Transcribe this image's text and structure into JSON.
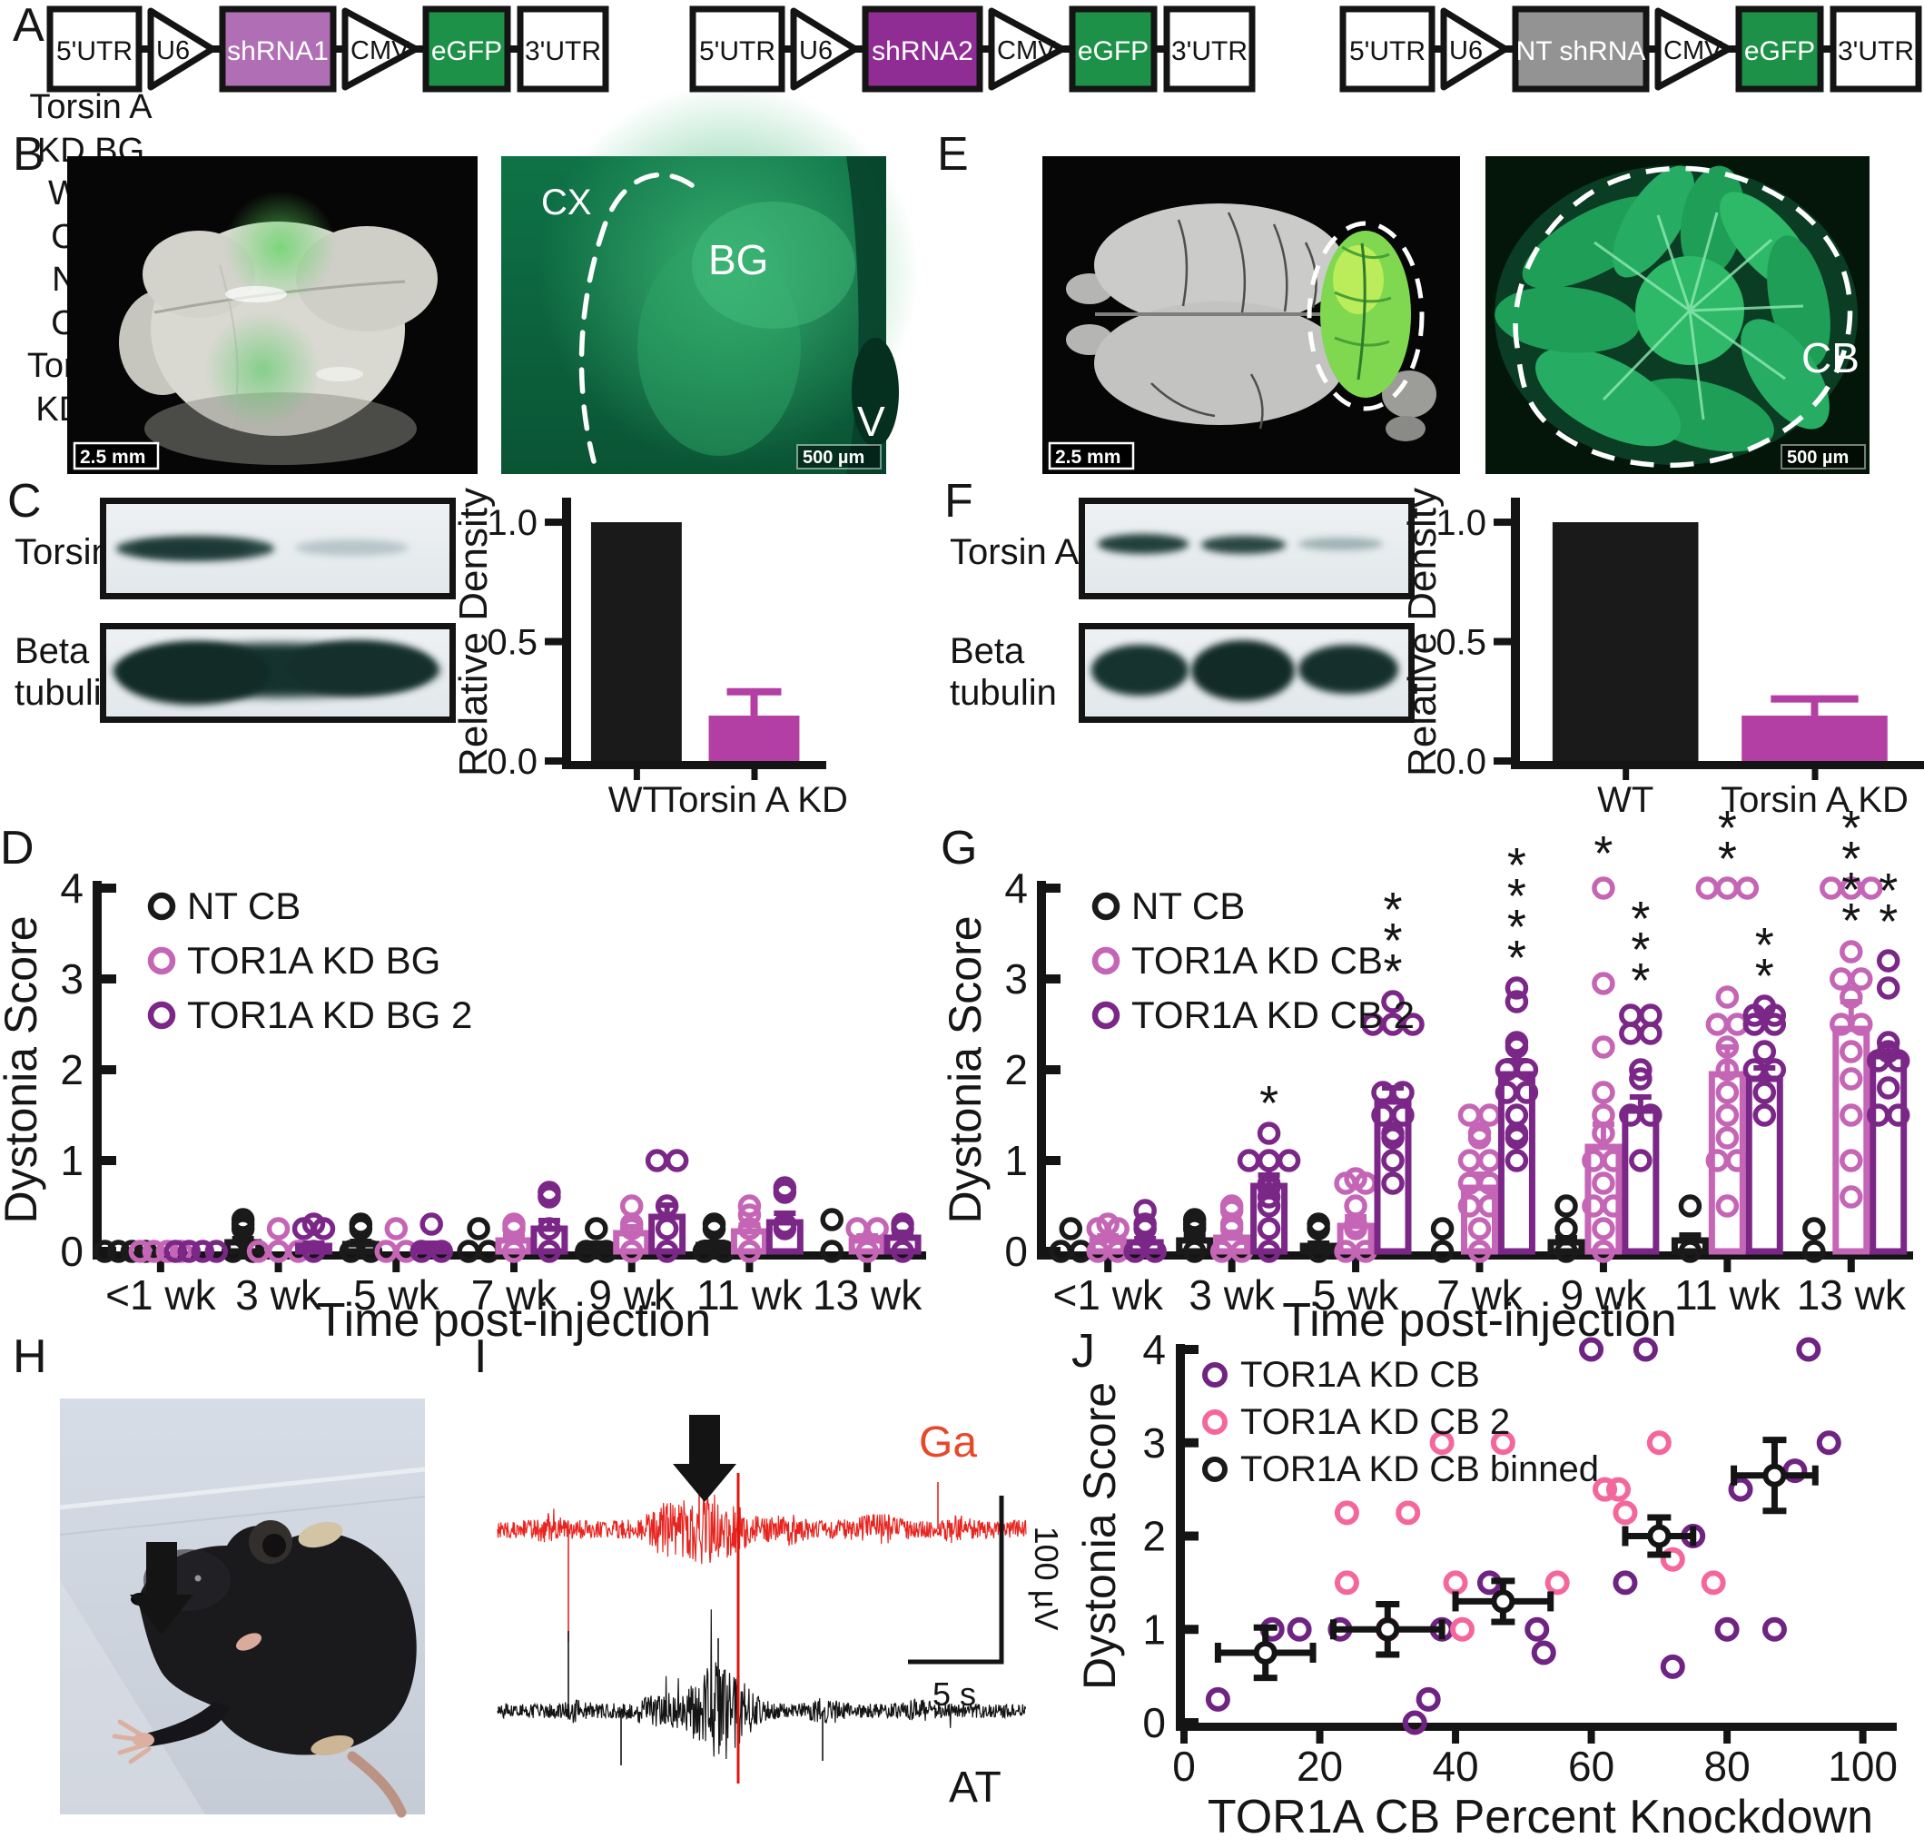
{
  "figure": {
    "panel_letters": {
      "a": "A",
      "b": "B",
      "c": "C",
      "d": "D",
      "e": "E",
      "f": "F",
      "g": "G",
      "h": "H",
      "i": "I",
      "j": "J"
    }
  },
  "panels": {
    "A": {
      "constructs": [
        {
          "name": "shRNA1 construct",
          "segments": [
            {
              "kind": "box",
              "label": "5'UTR",
              "fill": "#ffffff",
              "text_color": "#141414",
              "w": 104
            },
            {
              "kind": "promoter",
              "label": "U6",
              "w": 70
            },
            {
              "kind": "box",
              "label": "shRNA1",
              "fill": "#b06fb5",
              "text_color": "#ffffff",
              "w": 128
            },
            {
              "kind": "promoter",
              "label": "CMV",
              "w": 80
            },
            {
              "kind": "box",
              "label": "eGFP",
              "fill": "#1d9147",
              "text_color": "#ffffff",
              "w": 96
            },
            {
              "kind": "box",
              "label": "3'UTR",
              "fill": "#ffffff",
              "text_color": "#141414",
              "w": 100
            }
          ]
        },
        {
          "name": "shRNA2 construct",
          "segments": [
            {
              "kind": "box",
              "label": "5'UTR",
              "fill": "#ffffff",
              "text_color": "#141414",
              "w": 104
            },
            {
              "kind": "promoter",
              "label": "U6",
              "w": 70
            },
            {
              "kind": "box",
              "label": "shRNA2",
              "fill": "#8f2d95",
              "text_color": "#ffffff",
              "w": 132
            },
            {
              "kind": "promoter",
              "label": "CMV",
              "w": 80
            },
            {
              "kind": "box",
              "label": "eGFP",
              "fill": "#1d9147",
              "text_color": "#ffffff",
              "w": 96
            },
            {
              "kind": "box",
              "label": "3'UTR",
              "fill": "#ffffff",
              "text_color": "#141414",
              "w": 100
            }
          ]
        },
        {
          "name": "NT shRNA construct",
          "segments": [
            {
              "kind": "box",
              "label": "5'UTR",
              "fill": "#ffffff",
              "text_color": "#141414",
              "w": 104
            },
            {
              "kind": "promoter",
              "label": "U6",
              "w": 70
            },
            {
              "kind": "box",
              "label": "NT shRNA",
              "fill": "#939393",
              "text_color": "#ffffff",
              "w": 150
            },
            {
              "kind": "promoter",
              "label": "CMV",
              "w": 80
            },
            {
              "kind": "box",
              "label": "eGFP",
              "fill": "#1d9147",
              "text_color": "#ffffff",
              "w": 96
            },
            {
              "kind": "box",
              "label": "3'UTR",
              "fill": "#ffffff",
              "text_color": "#141414",
              "w": 100
            }
          ]
        }
      ]
    },
    "B": {
      "scale_left": "2.5 mm",
      "scale_right": "500 µm",
      "labels": {
        "cx": "CX",
        "bg": "BG",
        "v": "V"
      }
    },
    "C": {
      "torsin_label": "TorsinA",
      "beta_label_1": "Beta",
      "beta_label_2": "tubulin",
      "lanes": [
        [
          "WT",
          "BG"
        ],
        [
          "Torsin A",
          "KD BG"
        ]
      ]
    },
    "E": {
      "scale_left": "2.5 mm",
      "scale_right": "500 µm",
      "labels": {
        "cb": "CB"
      }
    },
    "F": {
      "torsin_label": "Torsin A",
      "beta_label_1": "Beta",
      "beta_label_2": "tubulin",
      "lanes": [
        [
          "WT",
          "CB"
        ],
        [
          "NT",
          "CB"
        ],
        [
          "Torsin A",
          "KD CB"
        ]
      ]
    },
    "I": {
      "top_label": "Ga",
      "bottom_label": "AT",
      "top_color": "#e8472a",
      "trace_bottom_color": "#141414",
      "vscale": "100 µV",
      "hscale": "5 s"
    }
  },
  "chart_data": [
    {
      "id": "C",
      "type": "bar",
      "ylabel": "Relative Density",
      "categories": [
        "WT",
        "Torsin A KD"
      ],
      "values": [
        1.0,
        0.19
      ],
      "errors": [
        0,
        0.1
      ],
      "colors": [
        "#1a1a1a",
        "#b43fa4"
      ],
      "ylim": [
        0,
        1.08
      ],
      "ytick_vals": [
        0,
        0.5,
        1
      ],
      "ytick_labels": [
        "0.0",
        "0.5",
        "1.0"
      ]
    },
    {
      "id": "F",
      "type": "bar",
      "ylabel": "Relative Density",
      "categories": [
        "WT",
        "Torsin A KD"
      ],
      "values": [
        1.0,
        0.19
      ],
      "errors": [
        0,
        0.07
      ],
      "colors": [
        "#1a1a1a",
        "#b43fa4"
      ],
      "ylim": [
        0,
        1.08
      ],
      "ytick_vals": [
        0,
        0.5,
        1
      ],
      "ytick_labels": [
        "0.0",
        "0.5",
        "1.0"
      ]
    },
    {
      "id": "D",
      "type": "grouped-scatter-bar",
      "ylabel": "Dystonia Score",
      "xlabel": "Time post-injection",
      "ylim": [
        0,
        4
      ],
      "ytick_vals": [
        0,
        1,
        2,
        3,
        4
      ],
      "categories": [
        "<1 wk",
        "3 wk",
        "5 wk",
        "7 wk",
        "9 wk",
        "11 wk",
        "13 wk"
      ],
      "series": [
        {
          "name": "NT CB",
          "color": "#1a1a1a",
          "means": [
            0.01,
            0.1,
            0.08,
            0.05,
            0.06,
            0.07,
            0.05
          ],
          "sems": [
            0.01,
            0.04,
            0.03,
            0.02,
            0.03,
            0.03,
            0.02
          ],
          "points": [
            [
              0,
              0,
              0,
              0
            ],
            [
              0,
              0,
              0.25,
              0.3,
              0.35
            ],
            [
              0,
              0,
              0.25,
              0.3
            ],
            [
              0,
              0,
              0.25
            ],
            [
              0,
              0,
              0.25
            ],
            [
              0,
              0,
              0.25,
              0.3
            ],
            [
              0,
              0.35
            ]
          ]
        },
        {
          "name": "TOR1A KD BG",
          "color": "#c565b5",
          "means": [
            0.01,
            0.03,
            0.05,
            0.12,
            0.2,
            0.22,
            0.12
          ],
          "sems": [
            0.01,
            0.02,
            0.03,
            0.05,
            0.07,
            0.07,
            0.05
          ],
          "points": [
            [
              0,
              0,
              0,
              0
            ],
            [
              0,
              0,
              0,
              0.25
            ],
            [
              0,
              0,
              0.25
            ],
            [
              0,
              0.25,
              0.3
            ],
            [
              0,
              0.25,
              0.3,
              0.5
            ],
            [
              0,
              0.25,
              0.4,
              0.5
            ],
            [
              0,
              0.25,
              0.25
            ]
          ]
        },
        {
          "name": "TOR1A KD BG 2",
          "color": "#7b2787",
          "means": [
            0.01,
            0.06,
            0.06,
            0.25,
            0.38,
            0.32,
            0.15
          ],
          "sems": [
            0.01,
            0.03,
            0.03,
            0.09,
            0.13,
            0.1,
            0.06
          ],
          "points": [
            [
              0,
              0,
              0,
              0
            ],
            [
              0,
              0.25,
              0.25,
              0.3
            ],
            [
              0,
              0,
              0.3
            ],
            [
              0,
              0.25,
              0.6,
              0.65
            ],
            [
              0,
              0.25,
              0.5,
              1.0,
              1.0
            ],
            [
              0.25,
              0.3,
              0.65,
              0.7
            ],
            [
              0,
              0.25,
              0.3
            ]
          ]
        }
      ],
      "sig": []
    },
    {
      "id": "G",
      "type": "grouped-scatter-bar",
      "ylabel": "Dystonia Score",
      "xlabel": "Time post-injection",
      "ylim": [
        0,
        4
      ],
      "ytick_vals": [
        0,
        1,
        2,
        3,
        4
      ],
      "categories": [
        "<1 wk",
        "3 wk",
        "5 wk",
        "7 wk",
        "9 wk",
        "11 wk",
        "13 wk"
      ],
      "series": [
        {
          "name": "NT CB",
          "color": "#1a1a1a",
          "means": [
            0.04,
            0.12,
            0.06,
            0.03,
            0.1,
            0.12,
            0.04
          ],
          "sems": [
            0.02,
            0.05,
            0.03,
            0.02,
            0.05,
            0.06,
            0.02
          ],
          "points": [
            [
              0,
              0,
              0.25
            ],
            [
              0,
              0.25,
              0.3,
              0.35
            ],
            [
              0,
              0.25,
              0.3
            ],
            [
              0,
              0.25
            ],
            [
              0,
              0.25,
              0.5
            ],
            [
              0,
              0.5
            ],
            [
              0,
              0.25
            ]
          ]
        },
        {
          "name": "TOR1A KD CB",
          "color": "#c565b5",
          "means": [
            0.12,
            0.15,
            0.28,
            0.7,
            1.15,
            1.95,
            2.45
          ],
          "sems": [
            0.05,
            0.06,
            0.1,
            0.15,
            0.25,
            0.3,
            0.3
          ],
          "points": [
            [
              0,
              0,
              0.25,
              0.25,
              0.3
            ],
            [
              0,
              0,
              0.25,
              0.3,
              0.45,
              0.5
            ],
            [
              0,
              0,
              0.25,
              0.3,
              0.5,
              0.75,
              0.75,
              0.8
            ],
            [
              0,
              0.25,
              0.5,
              0.5,
              0.75,
              0.75,
              1.0,
              1.0,
              1.25,
              1.3,
              1.5,
              1.5
            ],
            [
              0,
              0.25,
              0.5,
              0.5,
              0.75,
              1.0,
              1.0,
              1.3,
              1.5,
              1.75,
              2.25,
              2.95,
              4.0
            ],
            [
              0.5,
              1.0,
              1.0,
              1.25,
              1.5,
              1.75,
              2.0,
              2.25,
              2.5,
              2.5,
              2.8,
              4.0,
              4.0,
              4.0
            ],
            [
              0.6,
              1.0,
              1.5,
              1.9,
              2.2,
              2.5,
              2.5,
              2.8,
              3.0,
              3.0,
              3.3,
              4.0,
              4.0,
              4.0
            ]
          ]
        },
        {
          "name": "TOR1A KD CB 2",
          "color": "#7b2787",
          "means": [
            0.1,
            0.72,
            1.65,
            1.95,
            1.55,
            1.9,
            2.15
          ],
          "sems": [
            0.04,
            0.12,
            0.15,
            0.15,
            0.15,
            0.12,
            0.12
          ],
          "points": [
            [
              0,
              0,
              0.25,
              0.3,
              0.45
            ],
            [
              0,
              0.25,
              0.5,
              0.6,
              0.7,
              0.75,
              1.0,
              1.0,
              1.0,
              1.3
            ],
            [
              0.75,
              1.0,
              1.25,
              1.3,
              1.5,
              1.5,
              1.75,
              1.75,
              2.5,
              2.5,
              2.5,
              2.75
            ],
            [
              1.0,
              1.25,
              1.3,
              1.5,
              1.75,
              1.75,
              2.0,
              2.0,
              2.25,
              2.3,
              2.75,
              2.9
            ],
            [
              1.0,
              1.5,
              1.5,
              1.9,
              2.0,
              2.4,
              2.4,
              2.6,
              2.6
            ],
            [
              1.5,
              1.75,
              2.0,
              2.0,
              2.2,
              2.5,
              2.5,
              2.6,
              2.6,
              2.7
            ],
            [
              1.5,
              1.5,
              1.8,
              2.1,
              2.1,
              2.2,
              2.3,
              2.9,
              3.2
            ]
          ]
        }
      ],
      "sig": [
        {
          "cat": 1,
          "series": 2,
          "stars": "*",
          "y": 1.45
        },
        {
          "cat": 2,
          "series": 2,
          "stars": "***",
          "y": 2.9
        },
        {
          "cat": 3,
          "series": 2,
          "stars": "****",
          "y": 3.05
        },
        {
          "cat": 4,
          "series": 1,
          "stars": "*",
          "y": 4.2
        },
        {
          "cat": 4,
          "series": 2,
          "stars": "***",
          "y": 2.8
        },
        {
          "cat": 5,
          "series": 1,
          "stars": "**",
          "y": 4.2
        },
        {
          "cat": 5,
          "series": 2,
          "stars": "**",
          "y": 2.85
        },
        {
          "cat": 6,
          "series": 1,
          "stars": "****",
          "y": 4.2
        },
        {
          "cat": 6,
          "series": 2,
          "stars": "**",
          "y": 3.45
        }
      ]
    },
    {
      "id": "J",
      "type": "scatter",
      "ylabel": "Dystonia Score",
      "xlabel": "TOR1A CB Percent Knockdown",
      "xlim": [
        0,
        105
      ],
      "ylim": [
        0,
        4
      ],
      "xticks": [
        0,
        20,
        40,
        60,
        80,
        100
      ],
      "ytick_vals": [
        0,
        1,
        2,
        3,
        4
      ],
      "series": [
        {
          "name": "TOR1A KD CB",
          "color": "#6f2382",
          "points": [
            [
              5,
              0.25
            ],
            [
              13,
              1
            ],
            [
              17,
              1
            ],
            [
              23,
              1
            ],
            [
              34,
              0
            ],
            [
              36,
              0.25
            ],
            [
              38,
              1
            ],
            [
              45,
              1.5
            ],
            [
              52,
              1
            ],
            [
              53,
              0.75
            ],
            [
              60,
              4
            ],
            [
              65,
              1.5
            ],
            [
              68,
              4
            ],
            [
              72,
              0.6
            ],
            [
              75,
              2
            ],
            [
              80,
              1
            ],
            [
              82,
              2.5
            ],
            [
              87,
              1
            ],
            [
              90,
              2.7
            ],
            [
              92,
              4
            ],
            [
              95,
              3
            ]
          ]
        },
        {
          "name": "TOR1A KD CB 2",
          "color": "#f4679c",
          "points": [
            [
              24,
              2.25
            ],
            [
              24,
              1.5
            ],
            [
              30,
              1
            ],
            [
              33,
              2.25
            ],
            [
              38,
              3
            ],
            [
              40,
              1.5
            ],
            [
              41,
              1
            ],
            [
              47,
              3
            ],
            [
              55,
              1.5
            ],
            [
              62,
              2.5
            ],
            [
              64,
              2.5
            ],
            [
              65,
              2.25
            ],
            [
              70,
              3
            ],
            [
              72,
              1.75
            ],
            [
              78,
              1.5
            ]
          ]
        },
        {
          "name": "TOR1A KD CB binned",
          "color": "#1a1a1a",
          "binned": true,
          "points": [
            [
              12,
              0.75,
              7,
              0.27
            ],
            [
              30,
              1,
              8,
              0.27
            ],
            [
              47,
              1.3,
              7,
              0.22
            ],
            [
              70,
              2,
              5,
              0.2
            ],
            [
              87,
              2.65,
              6,
              0.38
            ]
          ]
        }
      ]
    }
  ]
}
